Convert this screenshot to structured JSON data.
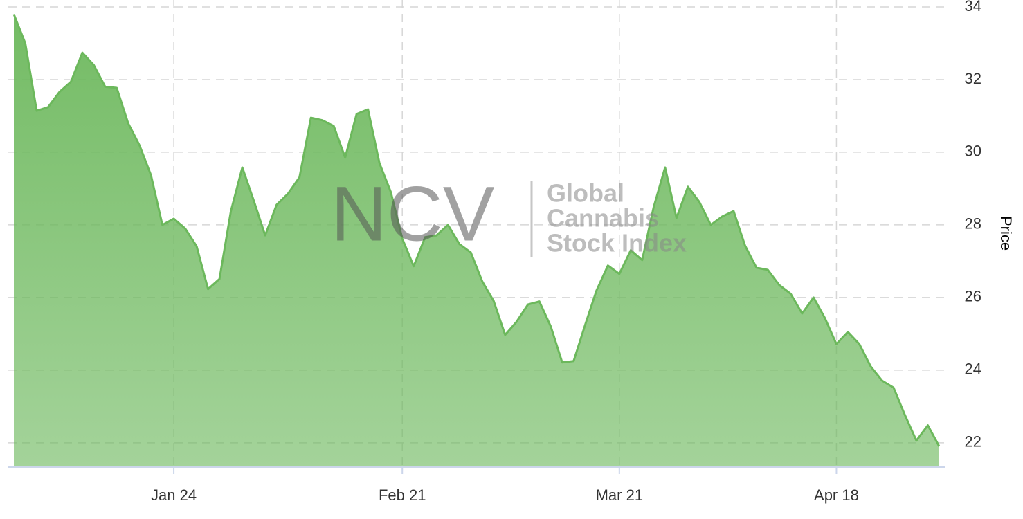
{
  "chart_data": {
    "type": "area",
    "y_label": "Price",
    "watermark": {
      "logo": "NCV",
      "lines": [
        "Global",
        "Cannabis",
        "Stock Index"
      ]
    },
    "categories": [
      null,
      null,
      null,
      null,
      null,
      null,
      null,
      null,
      null,
      null,
      null,
      null,
      null,
      null,
      "Jan 24",
      null,
      null,
      null,
      null,
      null,
      null,
      null,
      null,
      null,
      null,
      null,
      null,
      null,
      null,
      null,
      null,
      null,
      null,
      null,
      "Feb 21",
      null,
      null,
      null,
      null,
      null,
      null,
      null,
      null,
      null,
      null,
      null,
      null,
      null,
      null,
      null,
      null,
      null,
      null,
      "Mar 21",
      null,
      null,
      null,
      null,
      null,
      null,
      null,
      null,
      null,
      null,
      null,
      null,
      null,
      null,
      null,
      null,
      null,
      null,
      "Apr 18",
      null,
      null,
      null,
      null,
      null,
      null,
      null,
      null,
      null
    ],
    "series": [
      {
        "name": "Price",
        "color": "#6cb85c",
        "values": [
          33.8,
          33.0,
          31.14,
          31.24,
          31.66,
          31.94,
          32.74,
          32.4,
          31.8,
          31.77,
          30.8,
          30.19,
          29.37,
          28.0,
          28.17,
          27.9,
          27.41,
          26.23,
          26.51,
          28.38,
          29.58,
          28.67,
          27.71,
          28.55,
          28.86,
          29.31,
          30.95,
          30.88,
          30.72,
          29.85,
          31.05,
          31.18,
          29.7,
          28.9,
          27.62,
          26.86,
          27.66,
          27.71,
          28.0,
          27.47,
          27.24,
          26.44,
          25.9,
          24.97,
          25.33,
          25.81,
          25.89,
          25.2,
          24.21,
          24.25,
          25.24,
          26.19,
          26.88,
          26.65,
          27.3,
          27.03,
          28.48,
          29.58,
          28.19,
          29.05,
          28.63,
          28.0,
          28.23,
          28.38,
          27.43,
          26.82,
          26.76,
          26.34,
          26.1,
          25.56,
          26.0,
          25.43,
          24.72,
          25.05,
          24.72,
          24.1,
          23.71,
          23.52,
          22.76,
          22.06,
          22.48,
          21.9
        ]
      }
    ],
    "ylim": [
      21.33,
      34.19
    ],
    "yticks": [
      22,
      24,
      26,
      28,
      30,
      32,
      34
    ],
    "grid": true
  }
}
